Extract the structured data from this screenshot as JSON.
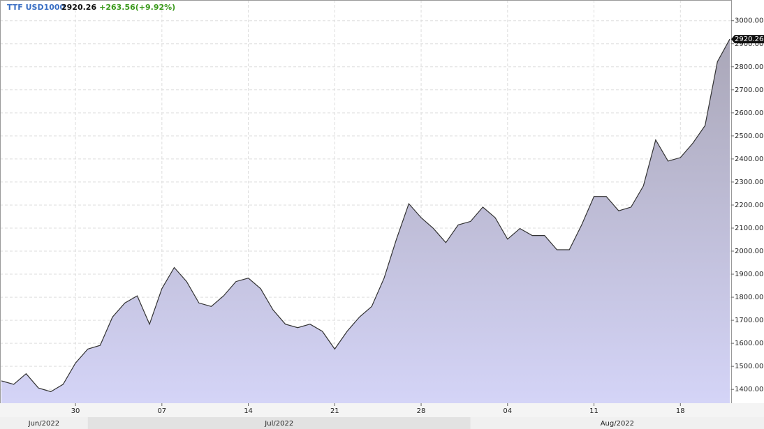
{
  "chart_data": {
    "type": "area",
    "title": "TTF USD1000",
    "last_price": 2920.26,
    "change": "+263.56(+9.92%)",
    "x": [
      "2022-06-24",
      "2022-06-25",
      "2022-06-26",
      "2022-06-27",
      "2022-06-28",
      "2022-06-29",
      "2022-06-30",
      "2022-07-01",
      "2022-07-02",
      "2022-07-03",
      "2022-07-04",
      "2022-07-05",
      "2022-07-06",
      "2022-07-07",
      "2022-07-08",
      "2022-07-09",
      "2022-07-10",
      "2022-07-11",
      "2022-07-12",
      "2022-07-13",
      "2022-07-14",
      "2022-07-15",
      "2022-07-16",
      "2022-07-17",
      "2022-07-18",
      "2022-07-19",
      "2022-07-20",
      "2022-07-21",
      "2022-07-22",
      "2022-07-23",
      "2022-07-24",
      "2022-07-25",
      "2022-07-26",
      "2022-07-27",
      "2022-07-28",
      "2022-07-29",
      "2022-07-30",
      "2022-07-31",
      "2022-08-01",
      "2022-08-02",
      "2022-08-03",
      "2022-08-04",
      "2022-08-05",
      "2022-08-06",
      "2022-08-07",
      "2022-08-08",
      "2022-08-09",
      "2022-08-10",
      "2022-08-11",
      "2022-08-12",
      "2022-08-13",
      "2022-08-14",
      "2022-08-15",
      "2022-08-16",
      "2022-08-17",
      "2022-08-18",
      "2022-08-19",
      "2022-08-20",
      "2022-08-21",
      "2022-08-22"
    ],
    "series": [
      {
        "name": "TTF USD1000",
        "color": "#333333",
        "values": [
          1437,
          1422,
          1468,
          1406,
          1390,
          1422,
          1514,
          1575,
          1591,
          1714,
          1775,
          1806,
          1683,
          1837,
          1929,
          1868,
          1775,
          1760,
          1806,
          1868,
          1883,
          1837,
          1745,
          1683,
          1668,
          1683,
          1652,
          1575,
          1652,
          1714,
          1760,
          1883,
          2052,
          2206,
          2145,
          2098,
          2037,
          2114,
          2129,
          2191,
          2145,
          2052,
          2098,
          2068,
          2068,
          2006,
          2006,
          2114,
          2237,
          2237,
          2175,
          2191,
          2283,
          2483,
          2391,
          2406,
          2468,
          2545,
          2822,
          2920.26
        ]
      }
    ],
    "xlim": [
      "2022-06-24",
      "2022-08-22"
    ],
    "xticks": [
      {
        "value": "2022-06-30",
        "label": "30"
      },
      {
        "value": "2022-07-07",
        "label": "07"
      },
      {
        "value": "2022-07-14",
        "label": "14"
      },
      {
        "value": "2022-07-21",
        "label": "21"
      },
      {
        "value": "2022-07-28",
        "label": "28"
      },
      {
        "value": "2022-08-04",
        "label": "04"
      },
      {
        "value": "2022-08-11",
        "label": "11"
      },
      {
        "value": "2022-08-18",
        "label": "18"
      }
    ],
    "month_ticks": [
      {
        "value": "2022-06-01",
        "label": "Jun/2022"
      },
      {
        "value": "2022-07-01",
        "label": "Jul/2022"
      },
      {
        "value": "2022-08-01",
        "label": "Aug/2022"
      }
    ],
    "ylim": [
      1340,
      3090
    ],
    "yticks": [
      {
        "value": 1400,
        "label": "1400.00"
      },
      {
        "value": 1500,
        "label": "1500.00"
      },
      {
        "value": 1600,
        "label": "1600.00"
      },
      {
        "value": 1700,
        "label": "1700.00"
      },
      {
        "value": 1800,
        "label": "1800.00"
      },
      {
        "value": 1900,
        "label": "1900.00"
      },
      {
        "value": 2000,
        "label": "2000.00"
      },
      {
        "value": 2100,
        "label": "2100.00"
      },
      {
        "value": 2200,
        "label": "2200.00"
      },
      {
        "value": 2300,
        "label": "2300.00"
      },
      {
        "value": 2400,
        "label": "2400.00"
      },
      {
        "value": 2500,
        "label": "2500.00"
      },
      {
        "value": 2600,
        "label": "2600.00"
      },
      {
        "value": 2700,
        "label": "2700.00"
      },
      {
        "value": 2800,
        "label": "2800.00"
      },
      {
        "value": 2900,
        "label": "2900.00"
      },
      {
        "value": 3000,
        "label": "3000.00"
      }
    ],
    "grid": true
  }
}
